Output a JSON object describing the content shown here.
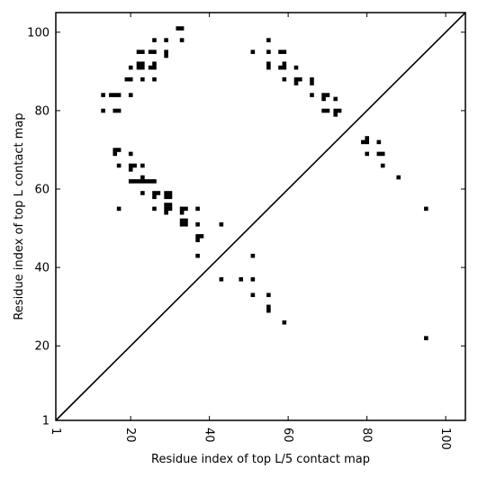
{
  "chart_data": {
    "type": "scatter",
    "title": "",
    "xlabel": "Residue index of top L/5 contact map",
    "ylabel": "Residue index of top L contact map",
    "xlim": [
      1,
      105
    ],
    "ylim": [
      1,
      105
    ],
    "x_ticks": [
      1,
      20,
      40,
      60,
      80,
      100
    ],
    "y_ticks": [
      1,
      20,
      40,
      60,
      80,
      100
    ],
    "x_tick_rotation": 90,
    "grid": false,
    "legend": "none",
    "marker": "square",
    "marker_color": "#000000",
    "diagonal_line": {
      "from": [
        1,
        1
      ],
      "to": [
        105,
        105
      ],
      "color": "#000000"
    },
    "series": [
      {
        "points": [
          [
            13,
            84
          ],
          [
            15,
            84
          ],
          [
            16,
            84
          ],
          [
            17,
            84
          ],
          [
            13,
            80
          ],
          [
            16,
            80
          ],
          [
            17,
            80
          ],
          [
            16,
            70
          ],
          [
            17,
            70
          ],
          [
            16,
            69
          ],
          [
            17,
            66
          ],
          [
            20,
            69
          ],
          [
            20,
            66
          ],
          [
            21,
            66
          ],
          [
            20,
            65
          ],
          [
            23,
            66
          ],
          [
            20,
            62
          ],
          [
            21,
            62
          ],
          [
            22,
            62
          ],
          [
            23,
            62
          ],
          [
            24,
            62
          ],
          [
            25,
            62
          ],
          [
            26,
            62
          ],
          [
            23,
            63
          ],
          [
            23,
            59
          ],
          [
            26,
            59
          ],
          [
            27,
            59
          ],
          [
            26,
            58
          ],
          [
            29,
            59
          ],
          [
            30,
            59
          ],
          [
            29,
            58
          ],
          [
            30,
            58
          ],
          [
            26,
            55
          ],
          [
            29,
            56
          ],
          [
            30,
            56
          ],
          [
            29,
            55
          ],
          [
            30,
            55
          ],
          [
            29,
            54
          ],
          [
            33,
            55
          ],
          [
            34,
            55
          ],
          [
            33,
            54
          ],
          [
            33,
            52
          ],
          [
            34,
            52
          ],
          [
            33,
            51
          ],
          [
            34,
            51
          ],
          [
            17,
            55
          ],
          [
            37,
            55
          ],
          [
            37,
            51
          ],
          [
            43,
            51
          ],
          [
            37,
            48
          ],
          [
            38,
            48
          ],
          [
            37,
            47
          ],
          [
            37,
            43
          ],
          [
            19,
            88
          ],
          [
            20,
            88
          ],
          [
            23,
            88
          ],
          [
            26,
            88
          ],
          [
            20,
            91
          ],
          [
            22,
            92
          ],
          [
            23,
            92
          ],
          [
            22,
            91
          ],
          [
            23,
            91
          ],
          [
            25,
            91
          ],
          [
            26,
            91
          ],
          [
            26,
            92
          ],
          [
            22,
            95
          ],
          [
            23,
            95
          ],
          [
            25,
            95
          ],
          [
            26,
            95
          ],
          [
            26,
            98
          ],
          [
            29,
            98
          ],
          [
            29,
            95
          ],
          [
            29,
            94
          ],
          [
            20,
            84
          ],
          [
            32,
            101
          ],
          [
            33,
            101
          ],
          [
            33,
            98
          ],
          [
            51,
            95
          ],
          [
            55,
            98
          ],
          [
            55,
            95
          ],
          [
            55,
            92
          ],
          [
            55,
            91
          ],
          [
            58,
            95
          ],
          [
            59,
            95
          ],
          [
            58,
            91
          ],
          [
            59,
            91
          ],
          [
            59,
            92
          ],
          [
            62,
            91
          ],
          [
            59,
            88
          ],
          [
            62,
            88
          ],
          [
            63,
            88
          ],
          [
            62,
            87
          ],
          [
            66,
            88
          ],
          [
            66,
            87
          ],
          [
            66,
            84
          ],
          [
            69,
            84
          ],
          [
            70,
            84
          ],
          [
            69,
            83
          ],
          [
            72,
            83
          ],
          [
            69,
            80
          ],
          [
            70,
            80
          ],
          [
            72,
            80
          ],
          [
            73,
            80
          ],
          [
            72,
            79
          ],
          [
            80,
            73
          ],
          [
            79,
            72
          ],
          [
            80,
            72
          ],
          [
            83,
            72
          ],
          [
            80,
            69
          ],
          [
            83,
            69
          ],
          [
            84,
            69
          ],
          [
            84,
            66
          ],
          [
            88,
            63
          ],
          [
            95,
            55
          ],
          [
            95,
            22
          ],
          [
            51,
            43
          ],
          [
            51,
            37
          ],
          [
            48,
            37
          ],
          [
            43,
            37
          ],
          [
            51,
            33
          ],
          [
            55,
            33
          ],
          [
            55,
            30
          ],
          [
            55,
            29
          ],
          [
            59,
            26
          ]
        ]
      }
    ]
  }
}
